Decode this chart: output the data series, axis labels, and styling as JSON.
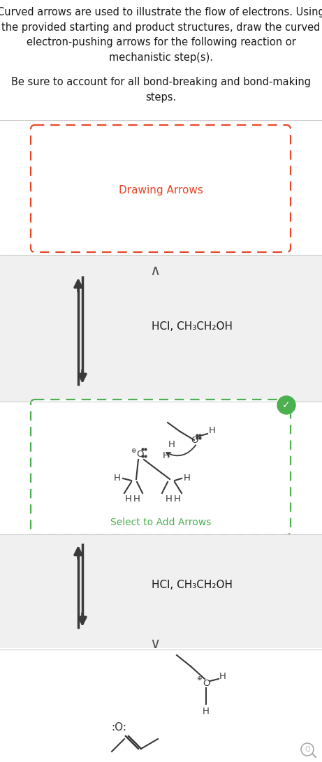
{
  "bg_color": "#ffffff",
  "gray_bg": "#f0f0f0",
  "text_color": "#1a1a1a",
  "red_color": "#e8472a",
  "green_color": "#4caf50",
  "arrow_color": "#3a3a3a",
  "mol_color": "#3a3a3a",
  "sep_color": "#d0d0d0",
  "header": "Curved arrows are used to illustrate the flow of electrons. Using\nthe provided starting and product structures, draw the curved\nelectron-pushing arrows for the following reaction or\nmechanistic step(s).",
  "subheader": "Be sure to account for all bond-breaking and bond-making\nsteps.",
  "label_drawing": "Drawing Arrows",
  "label_hcl": "HCl, CH₃CH₂OH",
  "label_select": "Select to Add Arrows",
  "fs_body": 10.5,
  "fs_mol": 9.5
}
